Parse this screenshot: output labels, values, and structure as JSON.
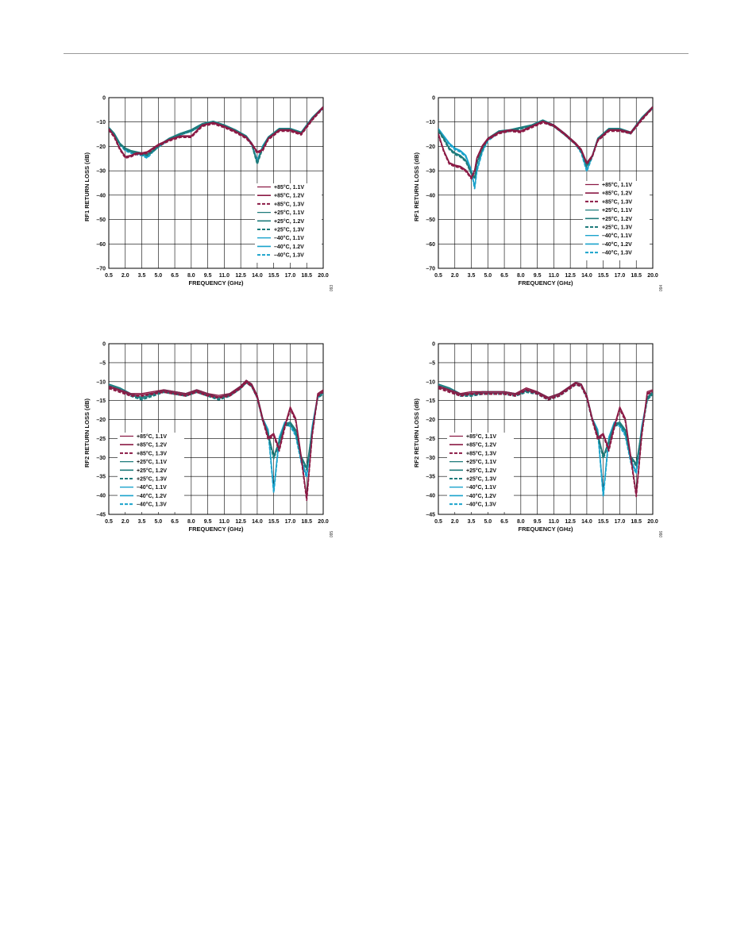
{
  "page": {
    "header_rule": true
  },
  "colors": {
    "hot": "#8b1a45",
    "room": "#1e7b7b",
    "cold": "#1aa3cc",
    "grid": "#000000"
  },
  "chart_data": [
    {
      "type": "line",
      "id": "rf1-a",
      "fig_id": "093",
      "xlabel": "FREQUENCY (GHz)",
      "ylabel": "RF1 RETURN LOSS (dB)",
      "xlim": [
        0.5,
        20.0
      ],
      "ylim": [
        -70,
        0
      ],
      "xticks": [
        0.5,
        2.0,
        3.5,
        5.0,
        6.5,
        8.0,
        9.5,
        11.0,
        12.5,
        14.0,
        15.5,
        17.0,
        18.5,
        20.0
      ],
      "xtick_labels": [
        "0.5",
        "2.0",
        "3.5",
        "5.0",
        "6.5",
        "8.0",
        "9.5",
        "11.0",
        "12.5",
        "14.0",
        "15.5",
        "17.0",
        "18.5",
        "20.0"
      ],
      "yticks": [
        0,
        -10,
        -20,
        -30,
        -40,
        -50,
        -60,
        -70
      ],
      "ytick_labels": [
        "0",
        "–10",
        "–20",
        "–30",
        "–40",
        "–50",
        "–60",
        "–70"
      ],
      "grid": true,
      "legend_placement": "lower-right",
      "legend": [
        "+85°C, 1.1V",
        "+85°C, 1.2V",
        "+85°C, 1.3V",
        "+25°C, 1.1V",
        "+25°C, 1.2V",
        "+25°C, 1.3V",
        "–40°C, 1.1V",
        "–40°C, 1.2V",
        "–40°C, 1.3V"
      ],
      "x": [
        0.5,
        1.0,
        1.5,
        2.0,
        2.5,
        3.0,
        3.5,
        4.0,
        4.5,
        5.0,
        6.0,
        7.0,
        8.0,
        9.0,
        10.0,
        11.0,
        12.0,
        13.0,
        13.5,
        14.0,
        14.5,
        15.0,
        16.0,
        17.0,
        18.0,
        19.0,
        20.0
      ],
      "series": [
        {
          "name": "+85°C, 1.1V",
          "group": "hot",
          "values": [
            -13,
            -16,
            -21,
            -24.5,
            -24,
            -23,
            -23,
            -22.5,
            -21,
            -19.5,
            -17.5,
            -16,
            -16,
            -11.5,
            -10.5,
            -12,
            -14,
            -16.5,
            -19,
            -22.5,
            -21.5,
            -17,
            -13.5,
            -13.5,
            -15,
            -9,
            -4
          ]
        },
        {
          "name": "+25°C, 1.1V",
          "group": "room",
          "values": [
            -12.5,
            -15,
            -19,
            -21,
            -22,
            -22.5,
            -23,
            -23.5,
            -22,
            -20,
            -17,
            -15,
            -13.5,
            -11,
            -10,
            -11.5,
            -13.5,
            -16,
            -19,
            -27,
            -20.5,
            -16.5,
            -13,
            -13,
            -14.5,
            -8.5,
            -4
          ]
        },
        {
          "name": "–40°C, 1.1V",
          "group": "cold",
          "values": [
            -12.5,
            -15,
            -19,
            -21.5,
            -22.5,
            -23,
            -23.5,
            -24.5,
            -22,
            -20,
            -17,
            -15,
            -13.5,
            -11,
            -10,
            -11.5,
            -13.5,
            -16,
            -19,
            -26,
            -20,
            -16.5,
            -13,
            -13,
            -14.5,
            -8.5,
            -4
          ]
        }
      ]
    },
    {
      "type": "line",
      "id": "rf1-b",
      "fig_id": "094",
      "xlabel": "FREQUENCY (GHz)",
      "ylabel": "RF1 RETURN LOSS (dB)",
      "xlim": [
        0.5,
        20.0
      ],
      "ylim": [
        -70,
        0
      ],
      "xticks": [
        0.5,
        2.0,
        3.5,
        5.0,
        6.5,
        8.0,
        9.5,
        11.0,
        12.5,
        14.0,
        15.5,
        17.0,
        18.5,
        20.0
      ],
      "xtick_labels": [
        "0.5",
        "2.0",
        "3.5",
        "5.0",
        "6.5",
        "8.0",
        "9.5",
        "11.0",
        "12.5",
        "14.0",
        "15.5",
        "17.0",
        "18.5",
        "20.0"
      ],
      "yticks": [
        0,
        -10,
        -20,
        -30,
        -40,
        -50,
        -60,
        -70
      ],
      "ytick_labels": [
        "0",
        "–10",
        "–20",
        "–30",
        "–40",
        "–50",
        "–60",
        "–70"
      ],
      "grid": true,
      "legend_placement": "lower-right",
      "legend": [
        "+85°C, 1.1V",
        "+85°C, 1.2V",
        "+85°C, 1.3V",
        "+25°C, 1.1V",
        "+25°C, 1.2V",
        "+25°C, 1.3V",
        "–40°C, 1.1V",
        "–40°C, 1.2V",
        "–40°C, 1.3V"
      ],
      "x": [
        0.5,
        1.0,
        1.5,
        2.0,
        2.5,
        3.0,
        3.5,
        3.8,
        4.0,
        4.5,
        5.0,
        6.0,
        7.0,
        8.0,
        9.0,
        10.0,
        11.0,
        12.0,
        13.0,
        13.5,
        14.0,
        14.5,
        15.0,
        16.0,
        17.0,
        18.0,
        19.0,
        20.0
      ],
      "series": [
        {
          "name": "+85°C, 1.1V",
          "group": "hot",
          "values": [
            -15,
            -22,
            -27,
            -28,
            -28.5,
            -30,
            -33,
            -30,
            -25,
            -20,
            -17,
            -14.5,
            -13.5,
            -14,
            -12,
            -10,
            -11.5,
            -15,
            -19,
            -21.5,
            -27,
            -24,
            -17.5,
            -13.5,
            -13.5,
            -14.5,
            -9,
            -4
          ]
        },
        {
          "name": "+25°C, 1.1V",
          "group": "room",
          "values": [
            -13.5,
            -17,
            -21,
            -23,
            -24,
            -26,
            -31,
            -33,
            -27,
            -21,
            -17,
            -14,
            -13.5,
            -12.5,
            -11.5,
            -9.5,
            -11.5,
            -15,
            -19,
            -22,
            -28,
            -24,
            -17,
            -13,
            -13,
            -14.5,
            -8.5,
            -4
          ]
        },
        {
          "name": "–40°C, 1.1V",
          "group": "cold",
          "values": [
            -13,
            -16,
            -19,
            -21,
            -22,
            -24,
            -30,
            -37,
            -30,
            -22,
            -17.5,
            -14,
            -13.5,
            -12.5,
            -11.5,
            -9.5,
            -11.5,
            -15,
            -19,
            -22.5,
            -30,
            -24,
            -17,
            -13,
            -13,
            -14.5,
            -8.5,
            -4
          ]
        }
      ]
    },
    {
      "type": "line",
      "id": "rf2-a",
      "fig_id": "095",
      "xlabel": "FREQUENCY (GHz)",
      "ylabel": "RF2 RETURN LOSS (dB)",
      "xlim": [
        0.5,
        20.0
      ],
      "ylim": [
        -45,
        0
      ],
      "xticks": [
        0.5,
        2.0,
        3.5,
        5.0,
        6.5,
        8.0,
        9.5,
        11.0,
        12.5,
        14.0,
        15.5,
        17.0,
        18.5,
        20.0
      ],
      "xtick_labels": [
        "0.5",
        "2.0",
        "3.5",
        "5.0",
        "6.5",
        "8.0",
        "9.5",
        "11.0",
        "12.5",
        "14.0",
        "15.5",
        "17.0",
        "18.5",
        "20.0"
      ],
      "yticks": [
        0,
        -5,
        -10,
        -15,
        -20,
        -25,
        -30,
        -35,
        -40,
        -45
      ],
      "ytick_labels": [
        "0",
        "–5",
        "–10",
        "–15",
        "–20",
        "–25",
        "–30",
        "–35",
        "–40",
        "–45"
      ],
      "grid": true,
      "legend_placement": "lower-left",
      "legend": [
        "+85°C, 1.1V",
        "+85°C, 1.2V",
        "+85°C, 1.3V",
        "+25°C, 1.1V",
        "+25°C, 1.2V",
        "+25°C, 1.3V",
        "–40°C, 1.1V",
        "–40°C, 1.2V",
        "–40°C, 1.3V"
      ],
      "x": [
        0.5,
        1.5,
        2.5,
        3.5,
        4.5,
        5.5,
        6.5,
        7.5,
        8.5,
        9.5,
        10.5,
        11.5,
        12.5,
        13.0,
        13.5,
        14.0,
        14.5,
        15.0,
        15.5,
        16.0,
        16.5,
        17.0,
        17.5,
        18.0,
        18.5,
        19.0,
        19.5,
        20.0
      ],
      "series": [
        {
          "name": "+85°C, 1.1V",
          "group": "hot",
          "values": [
            -11.5,
            -12.5,
            -13.5,
            -13.5,
            -13,
            -12.5,
            -13,
            -13.5,
            -12.5,
            -13.5,
            -14,
            -13.5,
            -11.5,
            -10,
            -11,
            -14,
            -20,
            -25,
            -24,
            -28,
            -22,
            -17,
            -20,
            -30,
            -41,
            -24,
            -13.5,
            -12.5
          ]
        },
        {
          "name": "+25°C, 1.1V",
          "group": "room",
          "values": [
            -11,
            -12,
            -13.5,
            -14.5,
            -13.5,
            -12.5,
            -13,
            -13.5,
            -12.5,
            -13.5,
            -14.5,
            -13.5,
            -11.5,
            -10,
            -11,
            -14,
            -20,
            -24,
            -30,
            -26,
            -21.5,
            -21,
            -23,
            -30,
            -33,
            -23,
            -14,
            -13
          ]
        },
        {
          "name": "–40°C, 1.1V",
          "group": "cold",
          "values": [
            -11,
            -12,
            -13.5,
            -14.5,
            -13.5,
            -12.5,
            -13,
            -13.5,
            -12.5,
            -13.5,
            -14.5,
            -13.5,
            -11.5,
            -10,
            -11,
            -14,
            -20,
            -23,
            -39,
            -25,
            -21,
            -21.5,
            -24,
            -31,
            -35,
            -22,
            -14,
            -13
          ]
        }
      ]
    },
    {
      "type": "line",
      "id": "rf2-b",
      "fig_id": "096",
      "xlabel": "FREQUENCY (GHz)",
      "ylabel": "RF2 RETURN LOSS (dB)",
      "xlim": [
        0.5,
        20.0
      ],
      "ylim": [
        -45,
        0
      ],
      "xticks": [
        0.5,
        2.0,
        3.5,
        5.0,
        6.5,
        8.0,
        9.5,
        11.0,
        12.5,
        14.0,
        15.5,
        17.0,
        18.5,
        20.0
      ],
      "xtick_labels": [
        "0.5",
        "2.0",
        "3.5",
        "5.0",
        "6.5",
        "8.0",
        "9.5",
        "11.0",
        "12.5",
        "14.0",
        "15.5",
        "17.0",
        "18.5",
        "20.0"
      ],
      "yticks": [
        0,
        -5,
        -10,
        -15,
        -20,
        -25,
        -30,
        -35,
        -40,
        -45
      ],
      "ytick_labels": [
        "0",
        "–5",
        "–10",
        "–15",
        "–20",
        "–25",
        "–30",
        "–35",
        "–40",
        "–45"
      ],
      "grid": true,
      "legend_placement": "lower-left",
      "legend": [
        "+85°C, 1.1V",
        "+85°C, 1.2V",
        "+85°C, 1.3V",
        "+25°C, 1.1V",
        "+25°C, 1.2V",
        "+25°C, 1.3V",
        "–40°C, 1.1V",
        "–40°C, 1.2V",
        "–40°C, 1.3V"
      ],
      "x": [
        0.5,
        1.5,
        2.5,
        3.5,
        4.5,
        5.5,
        6.5,
        7.5,
        8.5,
        9.5,
        10.5,
        11.5,
        12.5,
        13.0,
        13.5,
        14.0,
        14.5,
        15.0,
        15.5,
        16.0,
        16.5,
        17.0,
        17.5,
        18.0,
        18.5,
        19.0,
        19.5,
        20.0
      ],
      "series": [
        {
          "name": "+85°C, 1.1V",
          "group": "hot",
          "values": [
            -11.5,
            -12.5,
            -13.5,
            -13,
            -13,
            -13,
            -13,
            -13.5,
            -12,
            -13,
            -14.5,
            -13.5,
            -11.5,
            -10.5,
            -11,
            -14,
            -20,
            -25,
            -24,
            -28,
            -22,
            -17,
            -20,
            -30,
            -40,
            -24,
            -13,
            -12.5
          ]
        },
        {
          "name": "+25°C, 1.1V",
          "group": "room",
          "values": [
            -11,
            -12,
            -13.5,
            -13.5,
            -13,
            -13,
            -13,
            -13.5,
            -12.5,
            -13,
            -14.5,
            -13.5,
            -11.5,
            -10.5,
            -11,
            -14,
            -20,
            -24,
            -30,
            -26,
            -21.5,
            -21,
            -23,
            -30,
            -32,
            -23,
            -14.5,
            -13
          ]
        },
        {
          "name": "–40°C, 1.1V",
          "group": "cold",
          "values": [
            -11,
            -12,
            -13.5,
            -13.5,
            -13,
            -13,
            -13,
            -13.5,
            -12.5,
            -13,
            -14.5,
            -13.5,
            -11.5,
            -10.5,
            -11,
            -14,
            -20,
            -23,
            -40,
            -25,
            -21,
            -21.5,
            -24,
            -31,
            -34,
            -22,
            -14.5,
            -13
          ]
        }
      ]
    }
  ]
}
